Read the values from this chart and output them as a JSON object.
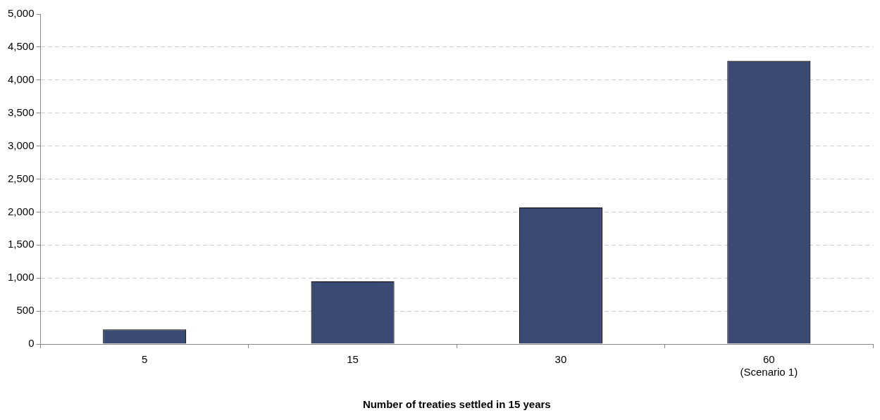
{
  "chart_data": {
    "type": "bar",
    "xlabel": "Number of treaties settled in 15 years",
    "categories": [
      "5",
      "15",
      "30",
      "60\n(Scenario 1)"
    ],
    "values": [
      220,
      950,
      2070,
      4290
    ],
    "color": "#3b4a72",
    "ylim": [
      0,
      5000
    ],
    "yticks": [
      {
        "value": 0,
        "label": "0"
      },
      {
        "value": 500,
        "label": "500"
      },
      {
        "value": 1000,
        "label": "1,000"
      },
      {
        "value": 1500,
        "label": "1,500"
      },
      {
        "value": 2000,
        "label": "2,000"
      },
      {
        "value": 2500,
        "label": "2,500"
      },
      {
        "value": 3000,
        "label": "3,000"
      },
      {
        "value": 3500,
        "label": "3,500"
      },
      {
        "value": 4000,
        "label": "4,000"
      },
      {
        "value": 4500,
        "label": "4,500"
      },
      {
        "value": 5000,
        "label": "5,000"
      }
    ],
    "grid": "y",
    "legend": false
  }
}
